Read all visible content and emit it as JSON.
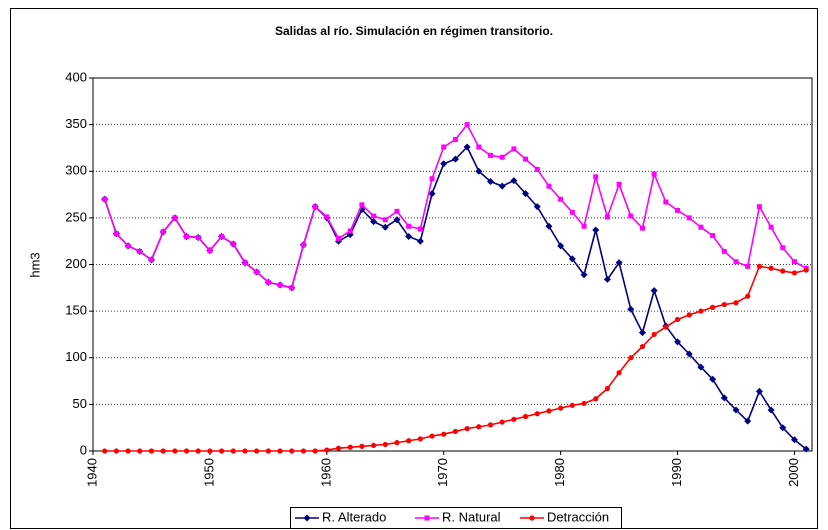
{
  "chart_data": {
    "type": "line",
    "title": "Salidas al río. Simulación en régimen transitorio.",
    "y_label": "hm3",
    "x": [
      1941,
      1942,
      1943,
      1944,
      1945,
      1946,
      1947,
      1948,
      1949,
      1950,
      1951,
      1952,
      1953,
      1954,
      1955,
      1956,
      1957,
      1958,
      1959,
      1960,
      1961,
      1962,
      1963,
      1964,
      1965,
      1966,
      1967,
      1968,
      1969,
      1970,
      1971,
      1972,
      1973,
      1974,
      1975,
      1976,
      1977,
      1978,
      1979,
      1980,
      1981,
      1982,
      1983,
      1984,
      1985,
      1986,
      1987,
      1988,
      1989,
      1990,
      1991,
      1992,
      1993,
      1994,
      1995,
      1996,
      1997,
      1998,
      1999,
      2000,
      2001
    ],
    "series": [
      {
        "name": "R. Alterado",
        "color": "#000080",
        "marker": "diamond",
        "values": [
          270,
          233,
          220,
          214,
          205,
          235,
          250,
          230,
          229,
          215,
          230,
          222,
          202,
          192,
          181,
          178,
          175,
          221,
          262,
          250,
          225,
          232,
          259,
          246,
          240,
          248,
          230,
          225,
          276,
          308,
          313,
          326,
          300,
          289,
          284,
          290,
          276,
          262,
          241,
          220,
          206,
          189,
          237,
          184,
          202,
          152,
          127,
          172,
          134,
          117,
          104,
          90,
          77,
          57,
          44,
          32,
          64,
          44,
          25,
          12,
          2
        ]
      },
      {
        "name": "R. Natural",
        "color": "#ff00ff",
        "marker": "square",
        "values": [
          270,
          233,
          220,
          214,
          205,
          235,
          250,
          230,
          229,
          215,
          230,
          222,
          202,
          192,
          181,
          178,
          175,
          221,
          262,
          251,
          228,
          236,
          264,
          252,
          248,
          257,
          241,
          238,
          292,
          326,
          334,
          350,
          326,
          317,
          315,
          324,
          313,
          302,
          284,
          270,
          256,
          241,
          294,
          251,
          286,
          252,
          239,
          297,
          267,
          258,
          250,
          240,
          231,
          214,
          203,
          198,
          262,
          240,
          218,
          203,
          196
        ]
      },
      {
        "name": "Detracción",
        "color": "#ff0000",
        "marker": "circle",
        "values": [
          0,
          0,
          0,
          0,
          0,
          0,
          0,
          0,
          0,
          0,
          0,
          0,
          0,
          0,
          0,
          0,
          0,
          0,
          0,
          1,
          3,
          4,
          5,
          6,
          7,
          9,
          11,
          13,
          16,
          18,
          21,
          24,
          26,
          28,
          31,
          34,
          37,
          40,
          43,
          46,
          49,
          51,
          56,
          67,
          84,
          100,
          112,
          125,
          133,
          141,
          146,
          150,
          154,
          157,
          159,
          166,
          198,
          196,
          193,
          191,
          194
        ]
      }
    ],
    "xlim": [
      1940,
      2001.5
    ],
    "xticks": [
      1940,
      1950,
      1960,
      1970,
      1980,
      1990,
      2000
    ],
    "ylim": [
      0,
      400
    ],
    "yticks": [
      0,
      50,
      100,
      150,
      200,
      250,
      300,
      350,
      400
    ],
    "grid": true,
    "legend": "bottom"
  }
}
